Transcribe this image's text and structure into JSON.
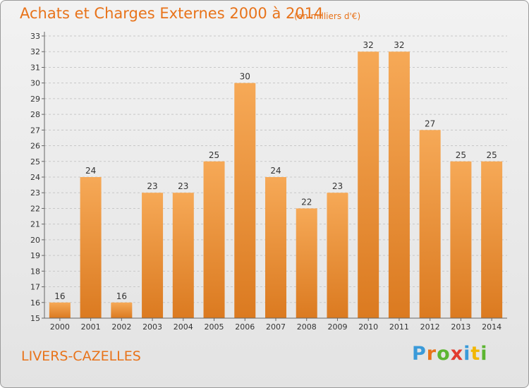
{
  "title": "Achats et Charges Externes 2000 à 2014",
  "subtitle": "(en milliers d'€)",
  "commune": "LIVERS-CAZELLES",
  "logo": {
    "text": "Proxiti",
    "letter_colors": [
      "#3a9ad9",
      "#e8731a",
      "#5cb531",
      "#e23b2e",
      "#3a9ad9",
      "#f2b705",
      "#5cb531"
    ]
  },
  "colors": {
    "accent": "#e8731a",
    "bar_light": "#f6a957",
    "bar_dark": "#db7a20"
  },
  "chart_data": {
    "type": "bar",
    "categories": [
      "2000",
      "2001",
      "2002",
      "2003",
      "2004",
      "2005",
      "2006",
      "2007",
      "2008",
      "2009",
      "2010",
      "2011",
      "2012",
      "2013",
      "2014"
    ],
    "values": [
      16,
      24,
      16,
      23,
      23,
      25,
      30,
      24,
      22,
      23,
      32,
      32,
      27,
      25,
      25
    ],
    "title": "Achats et Charges Externes 2000 à 2014",
    "subtitle": "(en milliers d'€)",
    "xlabel": "",
    "ylabel": "",
    "ylim": [
      15,
      33
    ],
    "yticks": [
      15,
      16,
      17,
      18,
      19,
      20,
      21,
      22,
      23,
      24,
      25,
      26,
      27,
      28,
      29,
      30,
      31,
      32,
      33
    ],
    "grid": "horizontal dashed",
    "legend": "none"
  }
}
